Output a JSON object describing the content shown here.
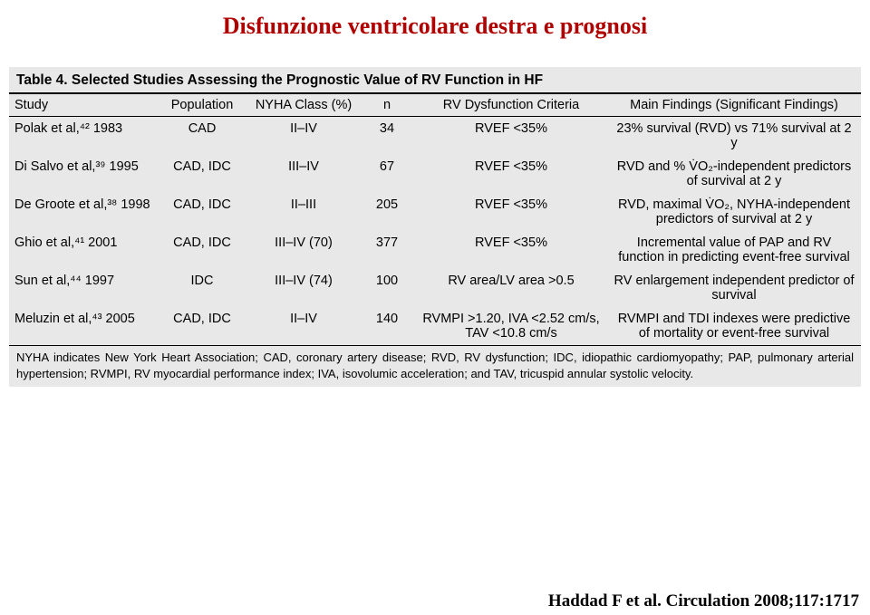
{
  "title": "Disfunzione ventricolare destra e prognosi",
  "table": {
    "caption": "Table 4.   Selected Studies Assessing the Prognostic Value of RV Function in HF",
    "headers": {
      "study": "Study",
      "population": "Population",
      "nyha": "NYHA Class (%)",
      "n": "n",
      "criteria": "RV Dysfunction Criteria",
      "findings": "Main Findings (Significant Findings)"
    },
    "rows": [
      {
        "study": "Polak et al,⁴² 1983",
        "population": "CAD",
        "nyha": "II–IV",
        "n": "34",
        "criteria": "RVEF <35%",
        "findings": "23% survival (RVD) vs 71% survival at 2 y"
      },
      {
        "study": "Di Salvo et al,³⁹ 1995",
        "population": "CAD, IDC",
        "nyha": "III–IV",
        "n": "67",
        "criteria": "RVEF <35%",
        "findings": "RVD and % V̇O₂-independent predictors of survival at 2 y"
      },
      {
        "study": "De Groote et al,³⁸ 1998",
        "population": "CAD, IDC",
        "nyha": "II–III",
        "n": "205",
        "criteria": "RVEF <35%",
        "findings": "RVD, maximal V̇O₂, NYHA-independent predictors of survival at 2 y"
      },
      {
        "study": "Ghio et al,⁴¹ 2001",
        "population": "CAD, IDC",
        "nyha": "III–IV (70)",
        "n": "377",
        "criteria": "RVEF <35%",
        "findings": "Incremental value of PAP and RV function in predicting event-free survival"
      },
      {
        "study": "Sun et al,⁴⁴ 1997",
        "population": "IDC",
        "nyha": "III–IV (74)",
        "n": "100",
        "criteria": "RV area/LV area >0.5",
        "findings": "RV enlargement independent predictor of survival"
      },
      {
        "study": "Meluzin et al,⁴³ 2005",
        "population": "CAD, IDC",
        "nyha": "II–IV",
        "n": "140",
        "criteria": "RVMPI >1.20, IVA <2.52 cm/s, TAV <10.8 cm/s",
        "findings": "RVMPI and TDI indexes were predictive of mortality or event-free survival"
      }
    ],
    "footnote": "NYHA indicates New York Heart Association; CAD, coronary artery disease; RVD, RV dysfunction; IDC, idiopathic cardiomyopathy; PAP, pulmonary arterial hypertension; RVMPI, RV myocardial performance index; IVA, isovolumic acceleration; and TAV, tricuspid annular systolic velocity."
  },
  "citation": "Haddad F et al. Circulation 2008;117:1717"
}
